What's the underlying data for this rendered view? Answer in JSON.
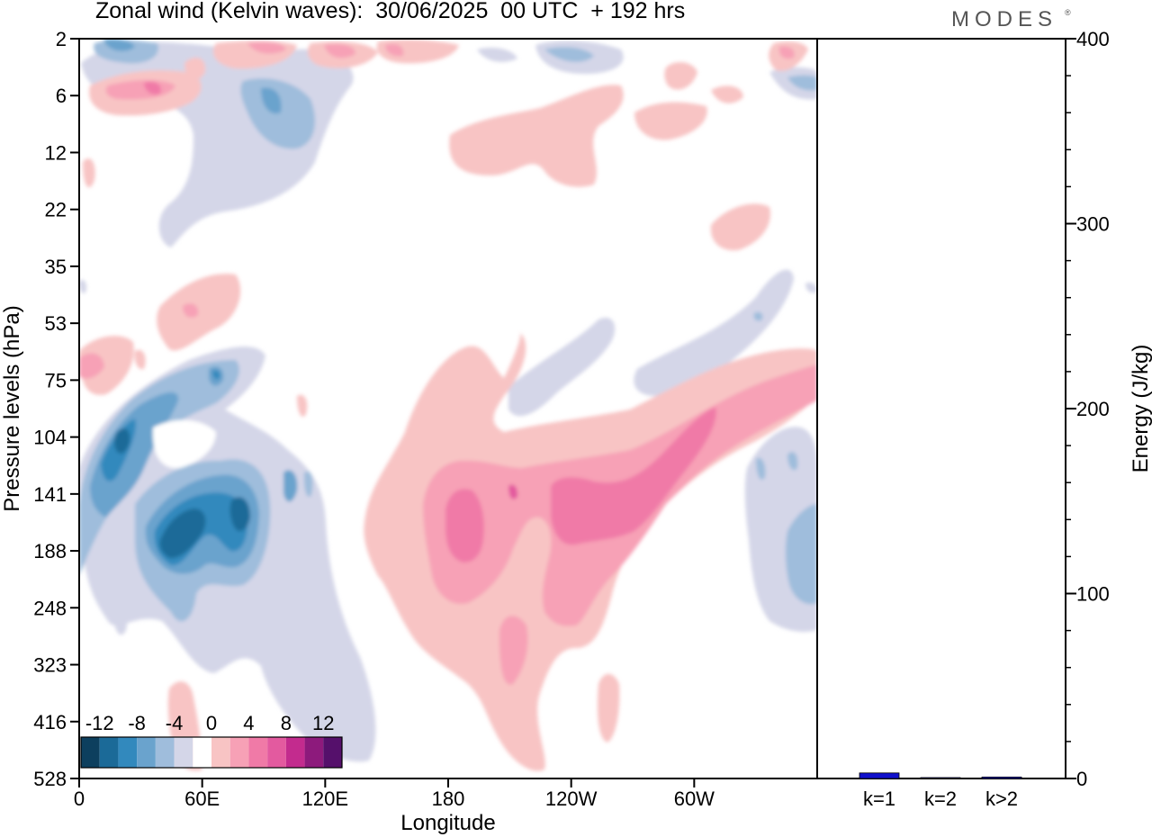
{
  "header": {
    "title": "Zonal wind (Kelvin waves):  30/06/2025  00 UTC  + 192 hrs",
    "brand": "MODES",
    "brand_mark": "®"
  },
  "chart_data": [
    {
      "type": "heatmap",
      "title": "Zonal wind (Kelvin waves):  30/06/2025  00 UTC  + 192 hrs",
      "xlabel": "Longitude",
      "ylabel": "Pressure levels (hPa)",
      "x_ticks": [
        {
          "lon": 0,
          "label": "0"
        },
        {
          "lon": 60,
          "label": "60E"
        },
        {
          "lon": 120,
          "label": "120E"
        },
        {
          "lon": 180,
          "label": "180"
        },
        {
          "lon": 240,
          "label": "120W"
        },
        {
          "lon": 300,
          "label": "60W"
        }
      ],
      "xlim": [
        0,
        360
      ],
      "y_levels": [
        "2",
        "6",
        "12",
        "22",
        "35",
        "53",
        "75",
        "104",
        "141",
        "188",
        "248",
        "323",
        "416",
        "528"
      ],
      "y_scale": "level index (top = 2 hPa, bottom = 528 hPa)",
      "colorbar": {
        "labels": [
          "-12",
          "-8",
          "-4",
          "0",
          "4",
          "8",
          "12"
        ],
        "bins": [
          -14,
          -12,
          -10,
          -8,
          -6,
          -4,
          -2,
          2,
          4,
          6,
          8,
          10,
          12,
          14
        ],
        "colors": [
          "#0d3f5e",
          "#1b6a98",
          "#3289bd",
          "#6aa3cd",
          "#9fbddc",
          "#d4d6e8",
          "#ffffff",
          "#f8c4c4",
          "#f7a1b6",
          "#f07aa7",
          "#e35a9f",
          "#c32b8e",
          "#8d1a7c",
          "#55106b"
        ]
      },
      "features": [
        {
          "name": "strong easterly core near 40E-80E",
          "lon": [
            32,
            92
          ],
          "level": [
            7.5,
            9.8
          ],
          "value": -11
        },
        {
          "name": "easterly band near 10E-30E",
          "lon": [
            8,
            35
          ],
          "level": [
            6.8,
            8.8
          ],
          "value": -10
        },
        {
          "name": "westerly core near 180",
          "lon": [
            170,
            200
          ],
          "level": [
            8.2,
            9.8
          ],
          "value": 8
        },
        {
          "name": "westerly core 120W-70W",
          "lon": [
            228,
            305
          ],
          "level": [
            7.0,
            9.4
          ],
          "value": 8
        },
        {
          "name": "upper westerly patch near 150W-90W",
          "lon": [
            180,
            290
          ],
          "level": [
            1.5,
            3.0
          ],
          "value": 3
        },
        {
          "name": "upper easterly patch near 70E-120E",
          "lon": [
            70,
            120
          ],
          "level": [
            0.5,
            4.0
          ],
          "value": -3
        }
      ]
    },
    {
      "type": "bar",
      "title": "",
      "xlabel": "",
      "ylabel": "Energy (J/kg)",
      "categories": [
        "k=1",
        "k=2",
        "k>2"
      ],
      "values": [
        3,
        0.5,
        0.8
      ],
      "ylim": [
        0,
        400
      ],
      "y_ticks": [
        "0",
        "100",
        "200",
        "300",
        "400"
      ],
      "colors": [
        "#1010cc",
        "#1010cc",
        "#1010cc"
      ],
      "grid": false
    }
  ]
}
